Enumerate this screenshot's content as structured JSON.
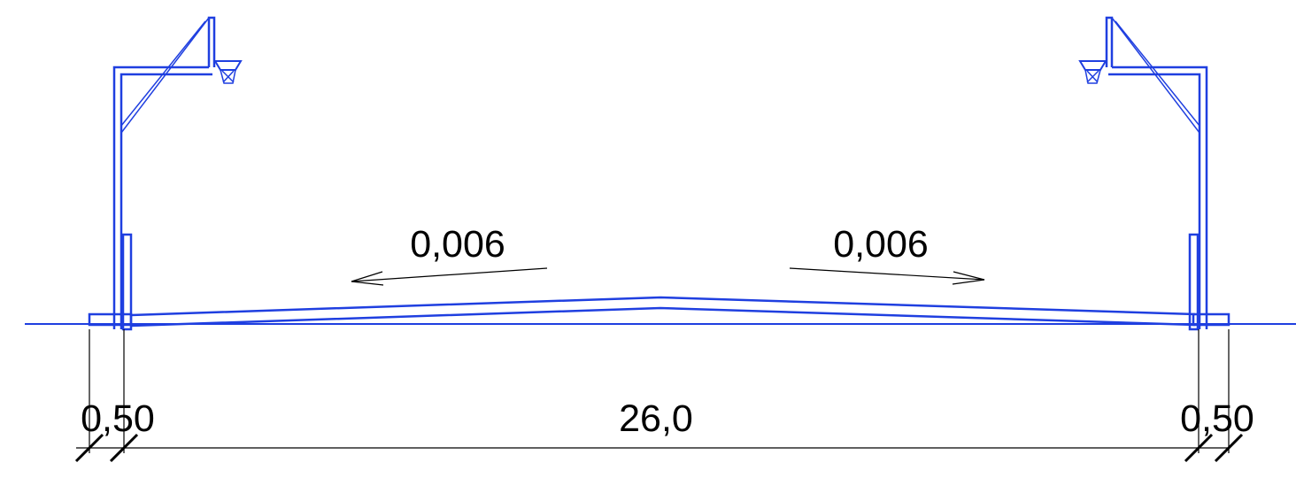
{
  "slopes": {
    "left": "0,006",
    "right": "0,006"
  },
  "dimensions": {
    "left_margin": "0,50",
    "court_width": "26,0",
    "right_margin": "0,50"
  },
  "colors": {
    "structure": "#1f3fe0",
    "annotation": "#000000"
  }
}
